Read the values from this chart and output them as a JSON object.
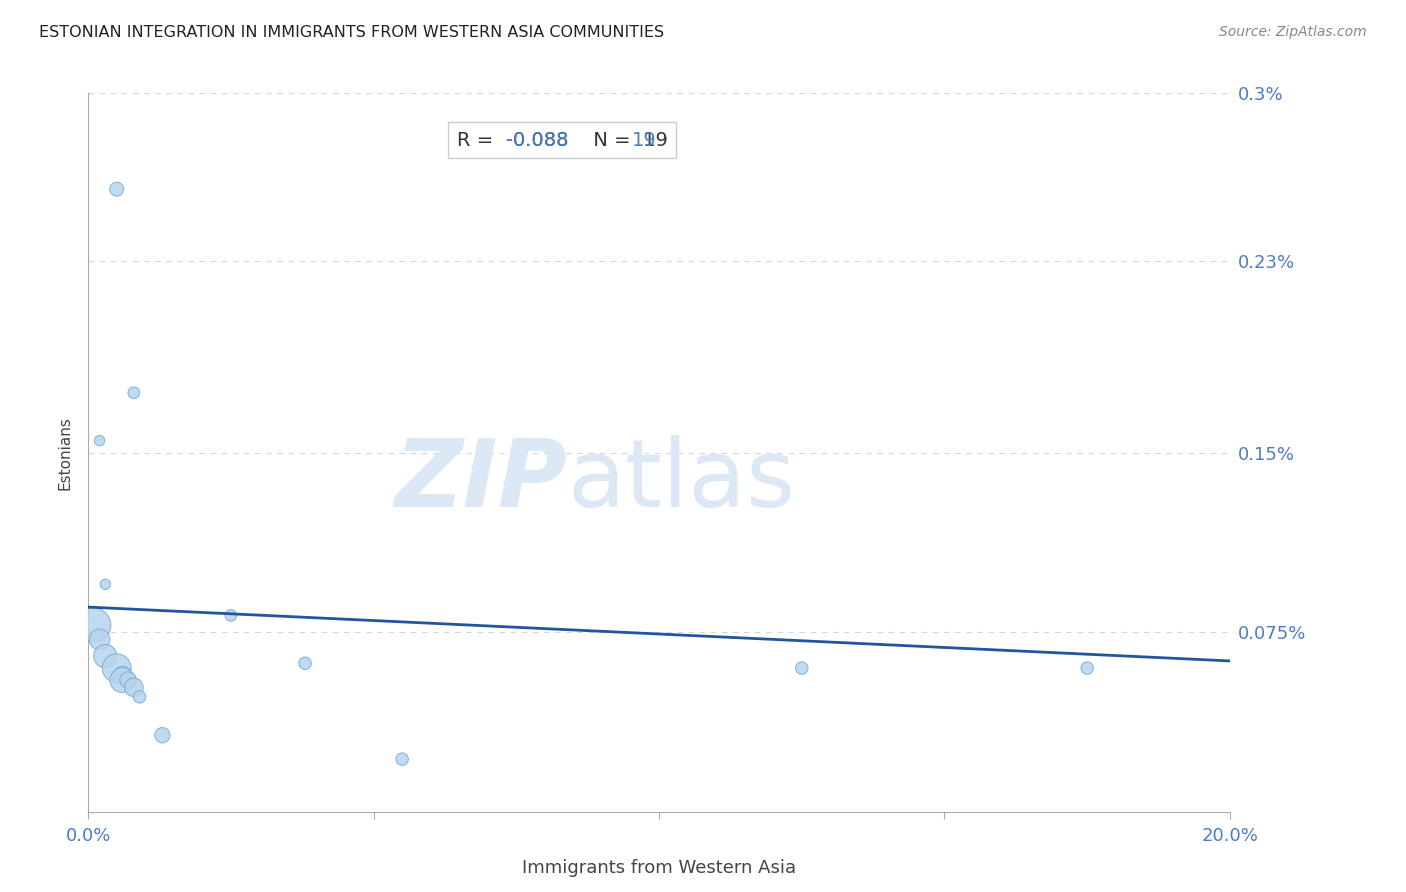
{
  "title": "ESTONIAN INTEGRATION IN IMMIGRANTS FROM WESTERN ASIA COMMUNITIES",
  "source": "Source: ZipAtlas.com",
  "xlabel": "Immigrants from Western Asia",
  "ylabel": "Estonians",
  "R_val": "-0.088",
  "N_val": "19",
  "xlim": [
    0.0,
    0.2
  ],
  "ylim": [
    0.0,
    0.003
  ],
  "ytick_labels": [
    "0.075%",
    "0.15%",
    "0.23%",
    "0.3%"
  ],
  "ytick_values": [
    0.00075,
    0.0015,
    0.0023,
    0.003
  ],
  "scatter_x": [
    0.005,
    0.008,
    0.002,
    0.003,
    0.001,
    0.002,
    0.003,
    0.005,
    0.006,
    0.006,
    0.007,
    0.008,
    0.009,
    0.013,
    0.025,
    0.038,
    0.055,
    0.125,
    0.175
  ],
  "scatter_y": [
    0.0026,
    0.00175,
    0.00155,
    0.00095,
    0.00078,
    0.00072,
    0.00065,
    0.0006,
    0.00057,
    0.00055,
    0.00055,
    0.00052,
    0.00048,
    0.00032,
    0.00082,
    0.00062,
    0.00022,
    0.0006,
    0.0006
  ],
  "scatter_size": [
    100,
    70,
    55,
    55,
    600,
    220,
    280,
    430,
    170,
    320,
    140,
    180,
    80,
    120,
    70,
    80,
    80,
    80,
    80
  ],
  "scatter_color": "#b8d4ed",
  "scatter_edge_color": "#7aadd4",
  "trend_start_y": 0.000855,
  "trend_end_y": 0.00063,
  "trend_color": "#2255a0",
  "grid_color": "#cccccc",
  "background_color": "#ffffff",
  "title_color": "#222222",
  "axis_label_color": "#444444",
  "tick_label_color": "#4d7cc7",
  "source_color": "#888888",
  "r_label_color": "#333333",
  "n_label_color": "#4d7cc7",
  "watermark_zip": "ZIP",
  "watermark_atlas": "atlas",
  "watermark_color": "#dce8f5"
}
